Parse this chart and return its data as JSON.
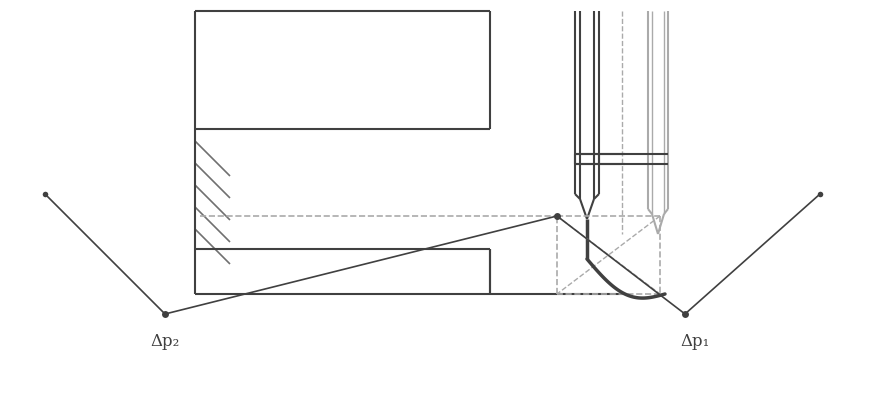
{
  "bg_color": "#ffffff",
  "dark": "#404040",
  "gray": "#707070",
  "light_gray": "#aaaaaa",
  "dash_gray": "#aaaaaa",
  "figsize": [
    8.7,
    4.02
  ],
  "dpi": 100,
  "dp1_label": "Δp₁",
  "dp2_label": "Δp₂"
}
